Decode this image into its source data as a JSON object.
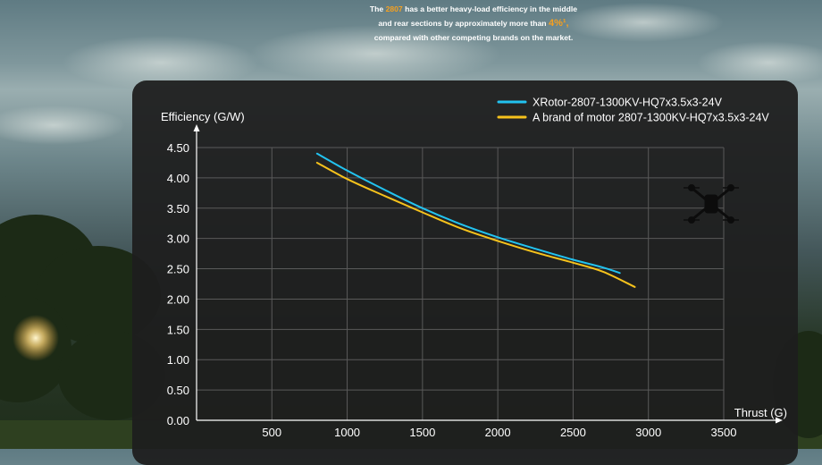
{
  "headline": {
    "line1_pre": "The",
    "line1_model": "2807",
    "line1_post": "has a better heavy-load efficiency in the middle",
    "line2_pre": "and rear sections by approximately more than",
    "line2_percent": "4%",
    "line2_mark": "¹,",
    "line3": "compared with other competing brands on the market."
  },
  "icons": {
    "drone": "drone-icon",
    "sun": "sun-glow"
  },
  "colors": {
    "series_blue": "#22c3f0",
    "series_yellow": "#f6c21c",
    "grid": "#5a5a5a",
    "axis": "#ffffff",
    "accent": "#f5a020"
  },
  "chart_data": {
    "type": "line",
    "ylabel": "Efficiency (G/W)",
    "xlabel": "Thrust (G)",
    "xlim": [
      0,
      3500
    ],
    "ylim": [
      0,
      4.5
    ],
    "x_ticks": [
      500,
      1000,
      1500,
      2000,
      2500,
      3000,
      3500
    ],
    "x_tick_labels": [
      "500",
      "1000",
      "1500",
      "2000",
      "2500",
      "3000",
      "3500"
    ],
    "y_ticks": [
      0,
      0.5,
      1.0,
      1.5,
      2.0,
      2.5,
      3.0,
      3.5,
      4.0,
      4.5
    ],
    "y_tick_labels": [
      "0.00",
      "0.50",
      "1.00",
      "1.50",
      "2.00",
      "2.50",
      "3.00",
      "3.50",
      "4.00",
      "4.50"
    ],
    "grid": true,
    "legend_position": "top-right",
    "series": [
      {
        "name": "XRotor-2807-1300KV-HQ7x3.5x3-24V",
        "color": "#22c3f0",
        "x": [
          800,
          1000,
          1250,
          1500,
          1750,
          2000,
          2250,
          2500,
          2700,
          2810
        ],
        "y": [
          4.4,
          4.12,
          3.8,
          3.5,
          3.24,
          3.02,
          2.83,
          2.65,
          2.52,
          2.43
        ]
      },
      {
        "name": "A brand of motor 2807-1300KV-HQ7x3.5x3-24V",
        "color": "#f6c21c",
        "x": [
          800,
          1000,
          1250,
          1500,
          1750,
          2000,
          2250,
          2500,
          2700,
          2910
        ],
        "y": [
          4.25,
          3.98,
          3.7,
          3.43,
          3.17,
          2.96,
          2.77,
          2.6,
          2.45,
          2.2
        ]
      }
    ]
  }
}
